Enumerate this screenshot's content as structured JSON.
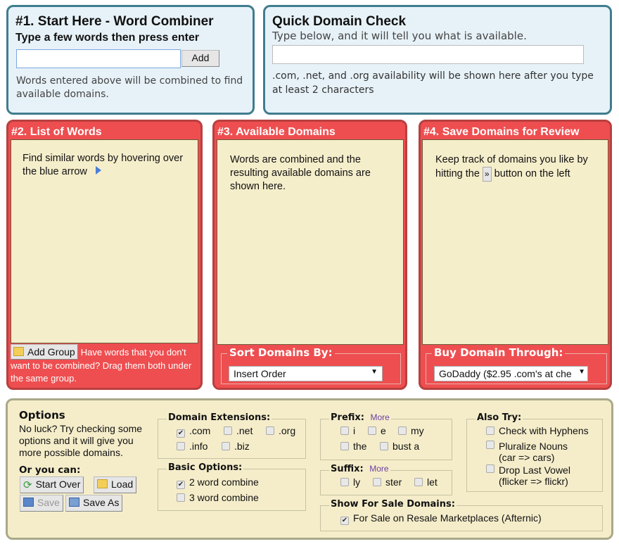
{
  "combiner": {
    "title": "#1. Start Here - Word Combiner",
    "subtitle": "Type a few words then press enter",
    "input_value": "",
    "add_label": "Add",
    "help": "Words entered above will be combined to find available domains."
  },
  "quick": {
    "title": "Quick Domain Check",
    "subtitle": "Type below, and it will tell you what is available.",
    "input_value": "",
    "help": ".com, .net, and .org availability will be shown here after you type at least 2 characters"
  },
  "panel2": {
    "title": "#2. List of Words",
    "text": "Find similar words by hovering over the blue arrow",
    "add_group_label": "Add Group",
    "group_help": "Have words that you don't want to be combined?  Drag them both under the same group."
  },
  "panel3": {
    "title": "#3. Available Domains",
    "text": "Words are combined and the resulting available domains are shown here.",
    "sort_legend": "Sort Domains By:",
    "sort_value": "Insert Order"
  },
  "panel4": {
    "title": "#4. Save Domains for Review",
    "text_before": "Keep track of domains you like by hitting the",
    "button_glyph": "»",
    "text_after": "button on the left",
    "buy_legend": "Buy Domain Through:",
    "buy_value": "GoDaddy ($2.95 .com's at che"
  },
  "options": {
    "title": "Options",
    "text": "No luck?  Try checking some options and it will give you more possible domains.",
    "or_label": "Or you can:",
    "start_over": "Start Over",
    "load": "Load",
    "save": "Save",
    "save_as": "Save As",
    "extensions": {
      "legend": "Domain Extensions:",
      "items": [
        {
          "label": ".com",
          "checked": true
        },
        {
          "label": ".net",
          "checked": false
        },
        {
          "label": ".org",
          "checked": false
        },
        {
          "label": ".info",
          "checked": false
        },
        {
          "label": ".biz",
          "checked": false
        }
      ]
    },
    "basic": {
      "legend": "Basic Options:",
      "items": [
        {
          "label": "2 word combine",
          "checked": true
        },
        {
          "label": "3 word combine",
          "checked": false
        }
      ]
    },
    "prefix": {
      "legend": "Prefix:",
      "more": "More",
      "items": [
        {
          "label": "i"
        },
        {
          "label": "e"
        },
        {
          "label": "my"
        },
        {
          "label": "the"
        },
        {
          "label": "bust a"
        }
      ]
    },
    "suffix": {
      "legend": "Suffix:",
      "more": "More",
      "items": [
        {
          "label": "ly"
        },
        {
          "label": "ster"
        },
        {
          "label": "let"
        }
      ]
    },
    "also": {
      "legend": "Also Try:",
      "items": [
        {
          "label": "Check with Hyphens",
          "note": ""
        },
        {
          "label": "Pluralize Nouns",
          "note": "(car => cars)"
        },
        {
          "label": "Drop Last Vowel",
          "note": "(flicker => flickr)"
        }
      ]
    },
    "forsale": {
      "legend": "Show For Sale Domains:",
      "label": "For Sale on Resale Marketplaces (Afternic)",
      "checked": true
    }
  },
  "colors": {
    "panel_red": "#ee4e50",
    "panel_blue": "#e7f2f8",
    "beige": "#f5eecb"
  }
}
